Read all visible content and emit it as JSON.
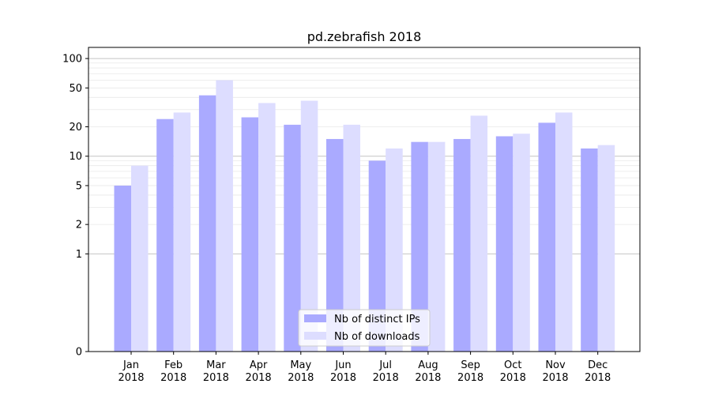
{
  "chart_data": {
    "type": "bar",
    "title": "pd.zebrafish 2018",
    "xlabel": "",
    "ylabel": "",
    "yscale": "symlog",
    "ylim": [
      0,
      130
    ],
    "yticks": [
      0,
      1,
      2,
      5,
      10,
      20,
      50,
      100
    ],
    "yticklabels": [
      "0",
      "1",
      "2",
      "5",
      "10",
      "20",
      "50",
      "100"
    ],
    "categories": [
      "Jan",
      "Feb",
      "Mar",
      "Apr",
      "May",
      "Jun",
      "Jul",
      "Aug",
      "Sep",
      "Oct",
      "Nov",
      "Dec"
    ],
    "category_years": [
      "2018",
      "2018",
      "2018",
      "2018",
      "2018",
      "2018",
      "2018",
      "2018",
      "2018",
      "2018",
      "2018",
      "2018"
    ],
    "series": [
      {
        "name": "Nb of distinct IPs",
        "color": "#aaaaff",
        "values": [
          5,
          24,
          42,
          25,
          21,
          15,
          9,
          14,
          15,
          16,
          22,
          12
        ]
      },
      {
        "name": "Nb of downloads",
        "color": "#ddddff",
        "values": [
          8,
          28,
          60,
          35,
          37,
          21,
          12,
          14,
          26,
          17,
          28,
          13
        ]
      }
    ],
    "legend_position": "lower-center",
    "grid": true
  }
}
